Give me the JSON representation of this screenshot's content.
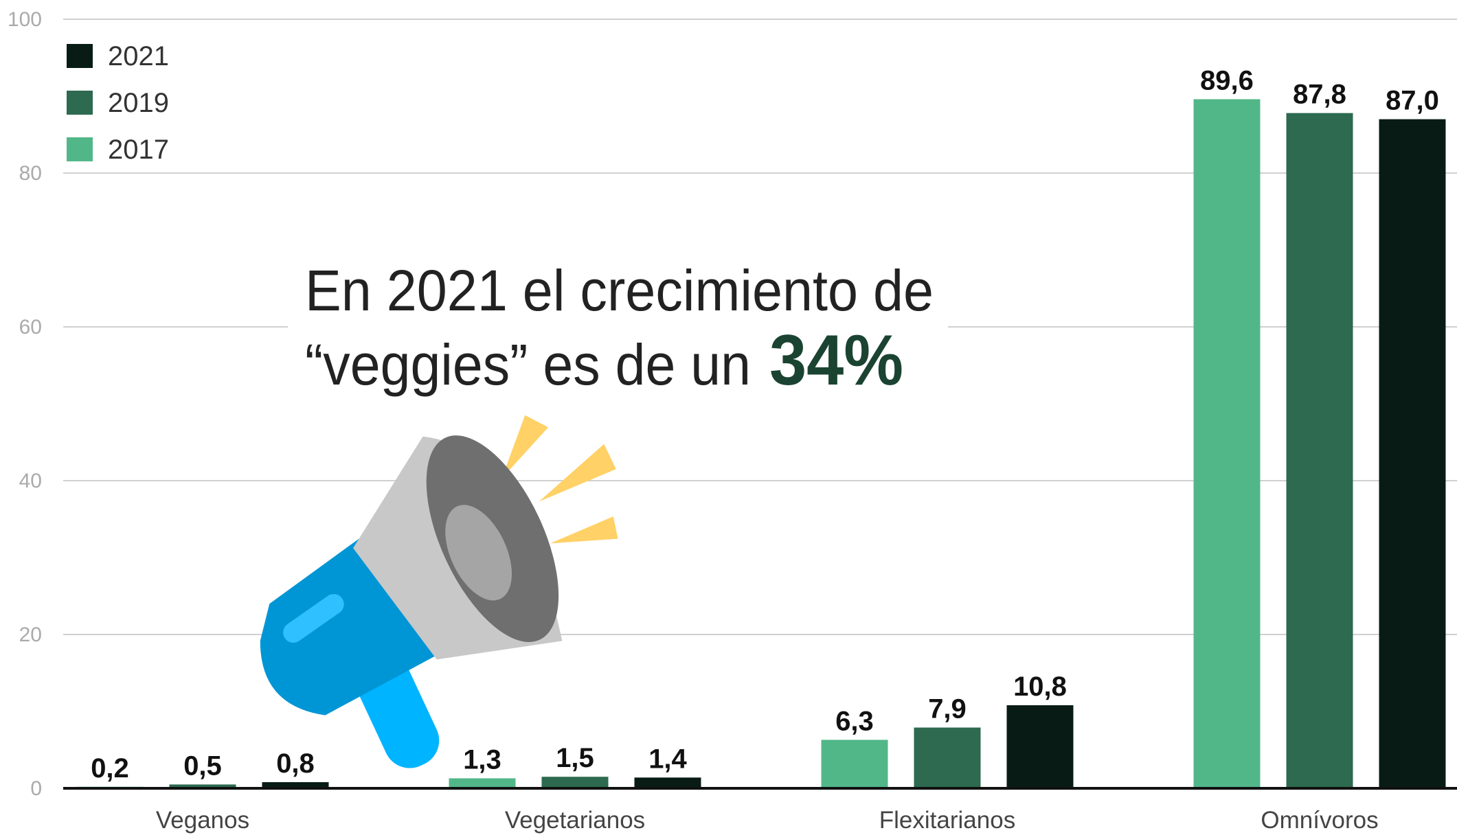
{
  "chart_data": {
    "type": "bar",
    "categories": [
      "Veganos",
      "Vegetarianos",
      "Flexitarianos",
      "Omnívoros"
    ],
    "series": [
      {
        "name": "2017",
        "color": "#52b788",
        "values": [
          0.2,
          1.3,
          6.3,
          89.6
        ],
        "value_labels": [
          "0,2",
          "1,3",
          "6,3",
          "89,6"
        ]
      },
      {
        "name": "2019",
        "color": "#2d6a4f",
        "values": [
          0.5,
          1.5,
          7.9,
          87.8
        ],
        "value_labels": [
          "0,5",
          "1,5",
          "7,9",
          "87,8"
        ]
      },
      {
        "name": "2021",
        "color": "#081c15",
        "values": [
          0.8,
          1.4,
          10.8,
          87.0
        ],
        "value_labels": [
          "0,8",
          "1,4",
          "10,8",
          "87,0"
        ]
      }
    ],
    "ylim": [
      0,
      100
    ],
    "yticks": [
      0,
      20,
      40,
      60,
      80,
      100
    ],
    "grid": true,
    "legend": "top-left",
    "annotation": {
      "lines": [
        "En 2021 el crecimiento de",
        "“veggies” es de un"
      ],
      "highlight": "34%",
      "highlight_color": "#1b4332"
    }
  }
}
